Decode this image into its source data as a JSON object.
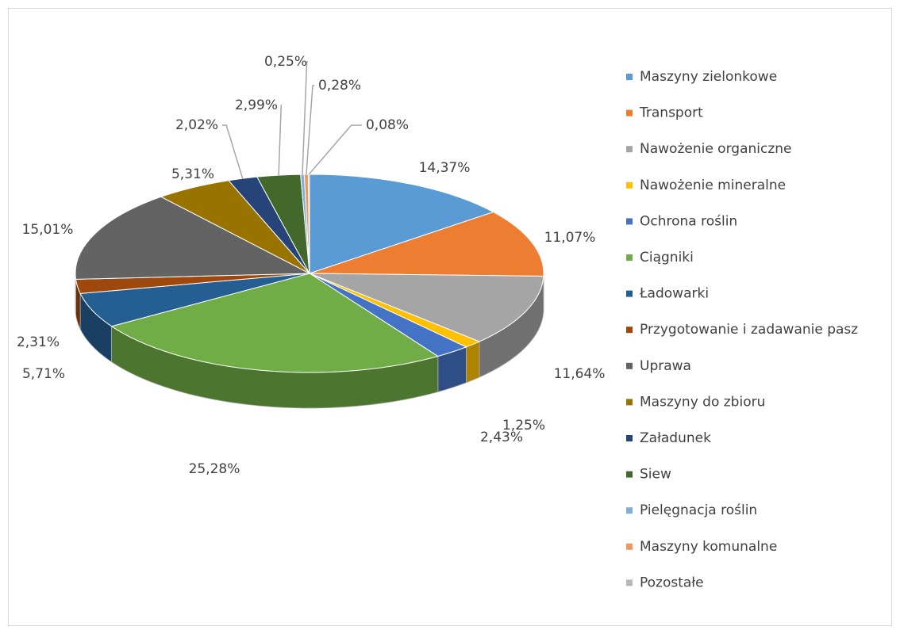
{
  "chart_data": {
    "type": "pie",
    "categories": [
      "Maszyny zielonkowe",
      "Transport",
      "Nawożenie organiczne",
      "Nawożenie mineralne",
      "Ochrona roślin",
      "Ciągniki",
      "Ładowarki",
      "Przygotowanie i zadawanie pasz",
      "Uprawa",
      "Maszyny do zbioru",
      "Załadunek",
      "Siew",
      "Pielęgnacja roślin",
      "Maszyny komunalne",
      "Pozostałe"
    ],
    "values": [
      14.37,
      11.07,
      11.64,
      1.25,
      2.43,
      25.28,
      5.71,
      2.31,
      15.01,
      5.31,
      2.02,
      2.99,
      0.25,
      0.28,
      0.08
    ],
    "value_labels": [
      "14,37%",
      "11,07%",
      "11,64%",
      "1,25%",
      "2,43%",
      "25,28%",
      "5,71%",
      "2,31%",
      "15,01%",
      "5,31%",
      "2,02%",
      "2,99%",
      "0,25%",
      "0,28%",
      "0,08%"
    ],
    "colors": [
      "#5b9bd5",
      "#ed7d31",
      "#a5a5a5",
      "#ffc000",
      "#4472c4",
      "#70ad47",
      "#255e91",
      "#9e480e",
      "#636363",
      "#997300",
      "#264478",
      "#43682b",
      "#7cafdd",
      "#f1975a",
      "#b7b7b7"
    ],
    "legend": "right"
  }
}
